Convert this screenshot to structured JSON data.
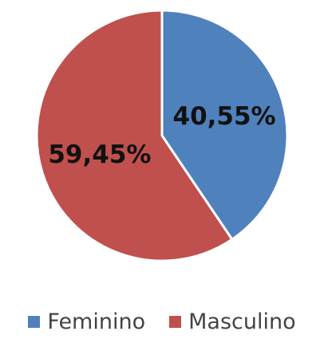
{
  "chart_data": {
    "type": "pie",
    "title": "",
    "categories": [
      "Feminino",
      "Masculino"
    ],
    "values": [
      40.55,
      59.45
    ],
    "data_labels": [
      "40,55%",
      "59,45%"
    ],
    "colors": [
      "#4f81bd",
      "#c0504d"
    ],
    "start_angle_deg": 0,
    "direction": "clockwise",
    "legend_position": "bottom"
  }
}
